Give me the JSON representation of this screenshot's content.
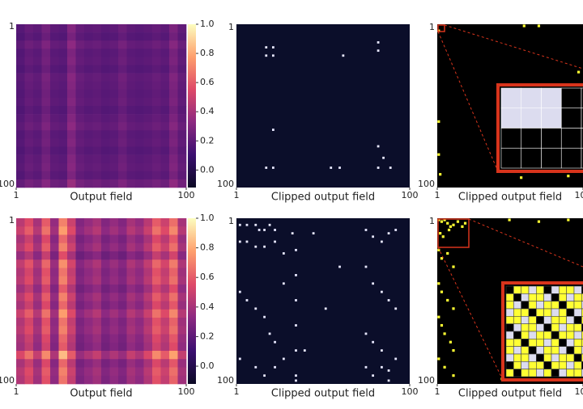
{
  "chart_data": [
    {
      "type": "heatmap",
      "xlabel": "Output field",
      "xlim": [
        1,
        100
      ],
      "ylim": [
        1,
        100
      ],
      "xticks": [
        1,
        100
      ],
      "yticks": [
        1,
        100
      ],
      "colormap": [
        "#0b0924",
        "#3b0f70",
        "#8c2981",
        "#de4968",
        "#fe9f6d",
        "#fcfdbf"
      ],
      "zlim": [
        -0.12,
        1.0
      ],
      "zticks": [
        {
          "value": 1.0,
          "label": "1.0"
        },
        0.8,
        0.6,
        0.4,
        0.2,
        {
          "value": 0.0,
          "label": "0.0"
        }
      ],
      "column_values": [
        0.18,
        0.22,
        0.2,
        0.26,
        0.2,
        0.19,
        0.3,
        0.22,
        0.2,
        0.21,
        0.19,
        0.2,
        0.24,
        0.2,
        0.19,
        0.2,
        0.22,
        0.2,
        0.28,
        0.21
      ],
      "row_values": [
        1.0,
        0.9,
        1.1,
        0.95,
        1.0,
        0.9,
        1.05,
        1.0,
        0.95,
        1.0,
        0.9,
        1.0,
        1.1,
        0.95,
        1.0,
        0.9,
        1.0,
        1.05,
        0.95,
        1.2
      ]
    },
    {
      "type": "scatter",
      "xlabel": "Clipped output field",
      "xlim": [
        1,
        100
      ],
      "ylim": [
        1,
        100
      ],
      "xticks": [
        1,
        100
      ],
      "background": "#0b0e2a",
      "color": "#e8e8ff",
      "x": [
        18,
        22,
        18,
        22,
        62,
        82,
        82,
        22,
        18,
        22,
        55,
        60,
        82,
        89,
        82,
        85
      ],
      "y": [
        15,
        15,
        20,
        20,
        20,
        12,
        17,
        65,
        88,
        88,
        88,
        88,
        88,
        88,
        75,
        82
      ]
    },
    {
      "type": "scatter",
      "xlabel": "Clipped output field",
      "xlim": [
        1,
        100
      ],
      "ylim": [
        1,
        100
      ],
      "xticks": [
        1,
        100
      ],
      "background": "#000000",
      "color": "#ffff33",
      "zoom": true,
      "x": [
        2,
        60,
        70,
        2,
        2,
        3,
        58,
        90,
        97,
        95
      ],
      "y": [
        5,
        2,
        2,
        60,
        80,
        92,
        94,
        93,
        30,
        75
      ]
    },
    {
      "type": "heatmap",
      "xlabel": "Output field",
      "xlim": [
        1,
        100
      ],
      "ylim": [
        1,
        100
      ],
      "xticks": [
        1,
        100
      ],
      "yticks": [
        1,
        100
      ],
      "colormap": [
        "#0b0924",
        "#3b0f70",
        "#8c2981",
        "#de4968",
        "#fe9f6d",
        "#fcfdbf"
      ],
      "zlim": [
        -0.12,
        1.0
      ],
      "zticks": [
        {
          "value": 1.0,
          "label": "1.0"
        },
        0.8,
        0.6,
        0.4,
        0.2,
        {
          "value": 0.0,
          "label": "0.0"
        }
      ],
      "column_values": [
        0.45,
        0.55,
        0.4,
        0.6,
        0.35,
        0.7,
        0.5,
        0.3,
        0.35,
        0.4,
        0.3,
        0.35,
        0.3,
        0.4,
        0.35,
        0.45,
        0.6,
        0.5,
        0.65,
        0.4
      ],
      "row_values": [
        1.0,
        1.1,
        0.9,
        1.0,
        0.8,
        1.05,
        0.95,
        1.0,
        0.85,
        1.0,
        0.9,
        1.1,
        0.95,
        1.0,
        0.9,
        0.85,
        1.2,
        0.9,
        1.0,
        0.95
      ]
    },
    {
      "type": "scatter",
      "xlabel": "Clipped output field",
      "xlim": [
        1,
        100
      ],
      "ylim": [
        1,
        100
      ],
      "xticks": [
        1,
        100
      ],
      "background": "#0b0e2a",
      "color": "#e8e8ff",
      "x": [
        3,
        7,
        12,
        14,
        17,
        20,
        23,
        3,
        7,
        12,
        17,
        23,
        28,
        33,
        35,
        35,
        35,
        35,
        35,
        35,
        35,
        28,
        3,
        7,
        12,
        17,
        20,
        23,
        75,
        79,
        84,
        88,
        92,
        75,
        79,
        84,
        88,
        92,
        75,
        84,
        92,
        75,
        79,
        88,
        45,
        60,
        52,
        40,
        3,
        12,
        17,
        23,
        28,
        79,
        84,
        88
      ],
      "y": [
        5,
        5,
        5,
        8,
        8,
        5,
        8,
        15,
        15,
        18,
        18,
        15,
        22,
        10,
        20,
        35,
        50,
        65,
        80,
        95,
        98,
        40,
        45,
        50,
        55,
        60,
        70,
        75,
        8,
        12,
        15,
        10,
        8,
        30,
        40,
        45,
        50,
        55,
        70,
        80,
        85,
        90,
        95,
        98,
        10,
        30,
        55,
        80,
        85,
        90,
        95,
        90,
        85,
        75,
        90,
        92
      ]
    },
    {
      "type": "scatter",
      "xlabel": "Clipped output field",
      "xlim": [
        1,
        100
      ],
      "ylim": [
        1,
        100
      ],
      "xticks": [
        1,
        100
      ],
      "background": "#000000",
      "color": "#ffff33",
      "zoom": true,
      "x": [
        2,
        4,
        6,
        8,
        10,
        3,
        5,
        9,
        12,
        15,
        18,
        20,
        2,
        4,
        8,
        12,
        2,
        4,
        8,
        12,
        2,
        4,
        6,
        10,
        12,
        2,
        6,
        12,
        50,
        70,
        90,
        45,
        60,
        95,
        98
      ],
      "y": [
        2,
        3,
        2,
        4,
        6,
        10,
        12,
        8,
        5,
        3,
        6,
        4,
        20,
        25,
        22,
        30,
        40,
        45,
        50,
        55,
        60,
        65,
        70,
        75,
        80,
        85,
        90,
        95,
        2,
        3,
        2,
        97,
        96,
        60,
        95
      ]
    }
  ]
}
